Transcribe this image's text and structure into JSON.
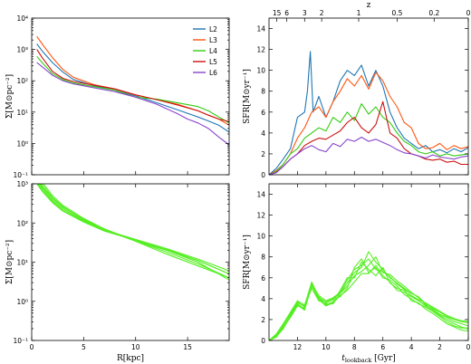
{
  "chart_data": [
    {
      "type": "line",
      "yscale": "log",
      "xlim": [
        0,
        19
      ],
      "ylim": [
        0.1,
        10000
      ],
      "xlabel": "",
      "ylabel": "Σ[M⊙pc⁻²]",
      "yticks": [
        "10⁻¹",
        "10⁰",
        "10¹",
        "10²",
        "10³",
        "10⁴"
      ],
      "legend_loc": "top-right",
      "series": [
        {
          "name": "L2",
          "color": "#1f77b4",
          "x": [
            0.5,
            1,
            2,
            3,
            4,
            6,
            8,
            10,
            12,
            14,
            16,
            17,
            18,
            19
          ],
          "y": [
            1500,
            900,
            380,
            190,
            110,
            70,
            50,
            33,
            20,
            12,
            7,
            5.2,
            3.8,
            2.3
          ]
        },
        {
          "name": "L3",
          "color": "#ff5511",
          "x": [
            0.5,
            1,
            2,
            3,
            4,
            6,
            8,
            10,
            12,
            14,
            16,
            17,
            18,
            19
          ],
          "y": [
            2600,
            1500,
            550,
            230,
            130,
            75,
            55,
            35,
            25,
            18,
            11,
            8,
            6,
            3.8
          ]
        },
        {
          "name": "L4",
          "color": "#33cc11",
          "x": [
            0.5,
            1,
            2,
            3,
            4,
            6,
            8,
            10,
            12,
            14,
            16,
            17,
            18,
            19
          ],
          "y": [
            600,
            380,
            170,
            110,
            85,
            65,
            50,
            30,
            26,
            20,
            15,
            11,
            7,
            4.5
          ]
        },
        {
          "name": "L5",
          "color": "#cc1111",
          "x": [
            0.5,
            1,
            2,
            3,
            4,
            6,
            8,
            10,
            12,
            14,
            16,
            17,
            18,
            19
          ],
          "y": [
            1000,
            550,
            200,
            120,
            95,
            72,
            55,
            36,
            25,
            17,
            11,
            8,
            6,
            5
          ]
        },
        {
          "name": "L6",
          "color": "#8844cc",
          "x": [
            0.5,
            1,
            2,
            3,
            4,
            6,
            8,
            10,
            12,
            14,
            15,
            16,
            17,
            17.5,
            18,
            19
          ],
          "y": [
            380,
            280,
            150,
            100,
            80,
            60,
            45,
            30,
            18,
            9,
            6,
            4.5,
            3,
            2.2,
            1.6,
            0.9
          ]
        }
      ]
    },
    {
      "type": "line",
      "xlim": [
        14,
        0
      ],
      "ylim": [
        0,
        15
      ],
      "ylabel": "SFR[M⊙yr⁻¹]",
      "xlabel": "",
      "top_axis_label": "z",
      "top_ticks": [
        "15",
        "6",
        "3",
        "2",
        "1",
        "0.5",
        "0.2",
        "0"
      ],
      "yticks": [
        "0",
        "2",
        "4",
        "6",
        "8",
        "10",
        "12",
        "14"
      ],
      "series": [
        {
          "name": "L2",
          "color": "#1f77b4",
          "x": [
            14,
            13.5,
            13,
            12.5,
            12,
            11.5,
            11.3,
            11.1,
            10.9,
            10.5,
            10,
            9.5,
            9,
            8.5,
            8,
            7.5,
            7,
            6.5,
            6,
            5.5,
            5,
            4.5,
            4,
            3.5,
            3,
            2.5,
            2,
            1.5,
            1,
            0.5,
            0
          ],
          "y": [
            0,
            0.6,
            1.5,
            2.5,
            5.5,
            6,
            8,
            11.8,
            6,
            7.5,
            5.5,
            7,
            9,
            10,
            9.5,
            10.5,
            8.5,
            10,
            8.5,
            6,
            4.5,
            3.5,
            3,
            2.5,
            2.8,
            2.2,
            2.4,
            2.1,
            2.5,
            2.2,
            2.6
          ]
        },
        {
          "name": "L3",
          "color": "#ff5511",
          "x": [
            14,
            13.5,
            13,
            12.5,
            12,
            11.5,
            11,
            10.5,
            10,
            9.5,
            9,
            8.5,
            8,
            7.5,
            7,
            6.5,
            6,
            5.5,
            5,
            4.5,
            4,
            3.5,
            3,
            2.5,
            2,
            1.5,
            1,
            0.5,
            0
          ],
          "y": [
            0,
            0.4,
            1,
            2,
            3.5,
            4.5,
            6,
            6.5,
            5.5,
            7,
            8,
            9.2,
            8.5,
            9.5,
            8.2,
            9.8,
            9,
            7.5,
            6.5,
            5,
            4.5,
            3,
            2.5,
            2.6,
            3,
            2.4,
            2.8,
            2.5,
            2.7
          ]
        },
        {
          "name": "L4",
          "color": "#33cc11",
          "x": [
            14,
            13.5,
            13,
            12.5,
            12,
            11.5,
            11,
            10.5,
            10,
            9.5,
            9,
            8.5,
            8,
            7.5,
            7,
            6.5,
            6,
            5.5,
            5,
            4.5,
            4,
            3.5,
            3,
            2.5,
            2,
            1.5,
            1,
            0.5,
            0
          ],
          "y": [
            0,
            0.3,
            1,
            2,
            2.5,
            3.5,
            4,
            4.5,
            4.2,
            5.5,
            5,
            6,
            5.2,
            6.8,
            5.8,
            6.5,
            5.5,
            5,
            4,
            3.2,
            2.8,
            2.2,
            2,
            2.2,
            1.8,
            2,
            1.8,
            1.9,
            2
          ]
        },
        {
          "name": "L5",
          "color": "#cc1111",
          "x": [
            14,
            13.5,
            13,
            12.5,
            12,
            11.5,
            11,
            10.5,
            10,
            9.5,
            9,
            8.5,
            8,
            7.5,
            7,
            6.5,
            6,
            5.5,
            5,
            4.5,
            4,
            3.5,
            3,
            2.5,
            2,
            1.5,
            1,
            0.5,
            0
          ],
          "y": [
            0,
            0.2,
            0.8,
            1.5,
            2,
            2.8,
            3.2,
            3.5,
            3.4,
            3.8,
            4.2,
            5,
            5.5,
            4.5,
            4,
            4.8,
            7,
            4,
            3.5,
            2.5,
            2,
            1.8,
            1.5,
            1.4,
            1.5,
            1.2,
            1.3,
            1,
            1
          ]
        },
        {
          "name": "L6",
          "color": "#8844cc",
          "x": [
            14,
            13.5,
            13,
            12.5,
            12,
            11.5,
            11,
            10.5,
            10,
            9.5,
            9,
            8.5,
            8,
            7.5,
            7,
            6.5,
            6,
            5.5,
            5,
            4.5,
            4,
            3.5,
            3,
            2.5,
            2,
            1.5,
            1,
            0.5,
            0
          ],
          "y": [
            0,
            0.2,
            0.8,
            1.5,
            2,
            2.5,
            2.8,
            2.4,
            2.2,
            3,
            2.7,
            3.4,
            3.2,
            3.6,
            3.2,
            3.4,
            3.1,
            2.8,
            2.4,
            2.1,
            2,
            1.8,
            1.6,
            1.9,
            1.7,
            1.6,
            1.5,
            1.7,
            1.8
          ]
        }
      ]
    },
    {
      "type": "line",
      "yscale": "log",
      "xlim": [
        0,
        19
      ],
      "ylim": [
        0.1,
        1000
      ],
      "xlabel": "R[kpc]",
      "ylabel": "Σ[M⊙pc⁻²]",
      "xticks": [
        "0",
        "5",
        "10",
        "15"
      ],
      "yticks": [
        "10⁻¹",
        "10⁰",
        "10¹",
        "10²",
        "10³"
      ],
      "series": [
        {
          "color": "#55ee22",
          "x": [
            0.5,
            1,
            2,
            3,
            5,
            7,
            10,
            13,
            16,
            19
          ],
          "y": [
            1900,
            1100,
            500,
            280,
            130,
            70,
            35,
            20,
            11,
            5
          ]
        },
        {
          "color": "#55ee22",
          "x": [
            0.5,
            1,
            2,
            3,
            5,
            7,
            10,
            13,
            16,
            19
          ],
          "y": [
            1400,
            850,
            420,
            250,
            125,
            70,
            35,
            18,
            9,
            4
          ]
        },
        {
          "color": "#55ee22",
          "x": [
            0.5,
            1,
            2,
            3,
            5,
            7,
            10,
            13,
            16,
            19
          ],
          "y": [
            1100,
            700,
            350,
            210,
            110,
            65,
            36,
            20,
            10,
            3.5
          ]
        },
        {
          "color": "#55ee22",
          "x": [
            0.5,
            1,
            2,
            3,
            5,
            7,
            10,
            13,
            16,
            19
          ],
          "y": [
            1600,
            950,
            450,
            260,
            120,
            68,
            34,
            16,
            8,
            4
          ]
        },
        {
          "color": "#55ee22",
          "x": [
            0.5,
            1,
            2,
            3,
            5,
            7,
            10,
            13,
            16,
            19
          ],
          "y": [
            1250,
            780,
            380,
            230,
            115,
            66,
            38,
            22,
            12,
            6
          ]
        },
        {
          "color": "#55ee22",
          "x": [
            0.5,
            1,
            2,
            3,
            5,
            7,
            10,
            13,
            16,
            19
          ],
          "y": [
            1000,
            650,
            330,
            200,
            105,
            62,
            36,
            21,
            11,
            5
          ]
        }
      ]
    },
    {
      "type": "line",
      "xlim": [
        14,
        0
      ],
      "ylim": [
        0,
        15
      ],
      "xlabel": "t_lookback [Gyr]",
      "ylabel": "SFR[M⊙yr⁻¹]",
      "xticks": [
        "12",
        "10",
        "8",
        "6",
        "4",
        "2",
        "0"
      ],
      "yticks": [
        "0",
        "2",
        "4",
        "6",
        "8",
        "10",
        "12",
        "14"
      ],
      "series": [
        {
          "color": "#55ee22",
          "x": [
            14,
            13.5,
            13,
            12.5,
            12,
            11.5,
            11,
            10.5,
            10,
            9.5,
            9,
            8.5,
            8,
            7.5,
            7,
            6.5,
            6,
            5.5,
            5,
            4.5,
            4,
            3.5,
            3,
            2.5,
            2,
            1.5,
            1,
            0.5,
            0
          ],
          "y": [
            0,
            0.5,
            1.5,
            2.5,
            3.5,
            3,
            5.5,
            4,
            3.5,
            3.5,
            4.5,
            5.5,
            6.5,
            7,
            8.5,
            7.5,
            6.8,
            6,
            5.5,
            5,
            4.5,
            4.2,
            3.5,
            3,
            2.5,
            2.2,
            1.8,
            1.6,
            1.4
          ]
        },
        {
          "color": "#55ee22",
          "x": [
            14,
            13.5,
            13,
            12.5,
            12,
            11.5,
            11,
            10.5,
            10,
            9.5,
            9,
            8.5,
            8,
            7.5,
            7,
            6.5,
            6,
            5.5,
            5,
            4.5,
            4,
            3.5,
            3,
            2.5,
            2,
            1.5,
            1,
            0.5,
            0
          ],
          "y": [
            0,
            0.4,
            1.3,
            2.3,
            3.7,
            3.2,
            5,
            3.8,
            3.6,
            3.9,
            4.2,
            5,
            7,
            7.8,
            6.5,
            7,
            6,
            5.8,
            5.2,
            4.4,
            4,
            3.5,
            3.2,
            2.8,
            2.3,
            1.8,
            1.4,
            1.2,
            1.2
          ]
        },
        {
          "color": "#55ee22",
          "x": [
            14,
            13.5,
            13,
            12.5,
            12,
            11.5,
            11,
            10.5,
            10,
            9.5,
            9,
            8.5,
            8,
            7.5,
            7,
            6.5,
            6,
            5.5,
            5,
            4.5,
            4,
            3.5,
            3,
            2.5,
            2,
            1.5,
            1,
            0.5,
            0
          ],
          "y": [
            0,
            0.3,
            1.2,
            2.2,
            3.3,
            3.1,
            5.2,
            4.2,
            3.4,
            3.7,
            4.8,
            6,
            6,
            7.5,
            6.8,
            6.2,
            7,
            5.5,
            5,
            4.8,
            3.8,
            3.6,
            3,
            2.6,
            2.1,
            1.6,
            1.3,
            1,
            0.9
          ]
        },
        {
          "color": "#55ee22",
          "x": [
            14,
            13.5,
            13,
            12.5,
            12,
            11.5,
            11,
            10.5,
            10,
            9.5,
            9,
            8.5,
            8,
            7.5,
            7,
            6.5,
            6,
            5.5,
            5,
            4.5,
            4,
            3.5,
            3,
            2.5,
            2,
            1.5,
            1,
            0.5,
            0
          ],
          "y": [
            0,
            0.5,
            1.4,
            2.6,
            3.6,
            3.3,
            5.6,
            4.1,
            3.7,
            4,
            4.5,
            5.2,
            6.2,
            6.6,
            7.2,
            8,
            6.5,
            6.3,
            5.7,
            5.2,
            4.6,
            4.1,
            3.4,
            3.1,
            2.7,
            2.3,
            2,
            1.8,
            1.7
          ]
        },
        {
          "color": "#55ee22",
          "x": [
            14,
            13.5,
            13,
            12.5,
            12,
            11.5,
            11,
            10.5,
            10,
            9.5,
            9,
            8.5,
            8,
            7.5,
            7,
            6.5,
            6,
            5.5,
            5,
            4.5,
            4,
            3.5,
            3,
            2.5,
            2,
            1.5,
            1,
            0.5,
            0
          ],
          "y": [
            0,
            0.4,
            1.1,
            2.4,
            3.4,
            2.9,
            5.3,
            3.9,
            3.3,
            3.6,
            4.3,
            4.8,
            5.6,
            6.4,
            6.4,
            7.2,
            6.2,
            5.6,
            4.8,
            4.6,
            4.2,
            3.8,
            3.3,
            2.9,
            2.4,
            2,
            1.6,
            1.3,
            1.1
          ]
        },
        {
          "color": "#55ee22",
          "x": [
            14,
            13.5,
            13,
            12.5,
            12,
            11.5,
            11,
            10.5,
            10,
            9.5,
            9,
            8.5,
            8,
            7.5,
            7,
            6.5,
            6,
            5.5,
            5,
            4.5,
            4,
            3.5,
            3,
            2.5,
            2,
            1.5,
            1,
            0.5,
            0
          ],
          "y": [
            0,
            0.6,
            1.6,
            2.7,
            3.8,
            3.4,
            5.4,
            4.3,
            3.8,
            4.1,
            4.6,
            5.8,
            6.8,
            7.2,
            7.8,
            6.8,
            6.6,
            6.1,
            5.4,
            4.9,
            4.3,
            3.9,
            3.6,
            3.2,
            2.8,
            2.4,
            2.1,
            1.9,
            1.8
          ]
        }
      ]
    }
  ]
}
